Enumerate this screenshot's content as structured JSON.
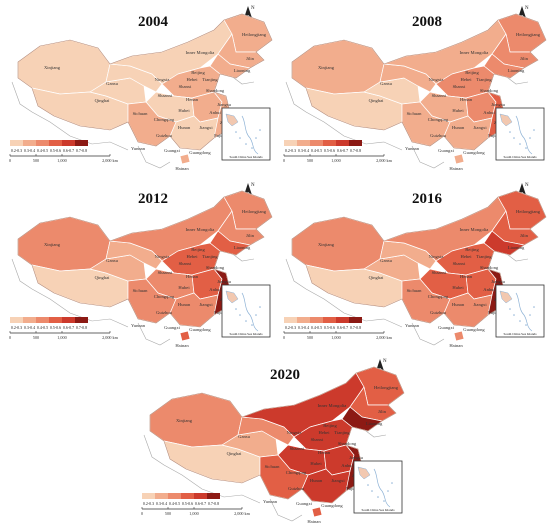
{
  "panels": [
    {
      "year": "2004",
      "levels": {
        "xinjiang": 0,
        "tibet": 0,
        "qinghai": 0,
        "gansu": 0,
        "imongolia": 0,
        "heilongjiang": 1,
        "jilin": 1,
        "liaoning": 1,
        "north": 1,
        "central": 0,
        "east": 1,
        "coast": 1,
        "south": 0,
        "southwest": 1,
        "hainan": 1
      }
    },
    {
      "year": "2008",
      "levels": {
        "xinjiang": 1,
        "tibet": 0,
        "qinghai": 0,
        "gansu": 1,
        "imongolia": 1,
        "heilongjiang": 2,
        "jilin": 2,
        "liaoning": 2,
        "north": 2,
        "central": 1,
        "east": 2,
        "coast": 3,
        "south": 1,
        "southwest": 1,
        "hainan": 1
      }
    },
    {
      "year": "2012",
      "levels": {
        "xinjiang": 2,
        "tibet": 0,
        "qinghai": 1,
        "gansu": 1,
        "imongolia": 2,
        "heilongjiang": 2,
        "jilin": 2,
        "liaoning": 3,
        "north": 3,
        "central": 2,
        "east": 3,
        "coast": 5,
        "south": 2,
        "southwest": 2,
        "hainan": 3
      }
    },
    {
      "year": "2016",
      "levels": {
        "xinjiang": 2,
        "tibet": 0,
        "qinghai": 1,
        "gansu": 1,
        "imongolia": 2,
        "heilongjiang": 3,
        "jilin": 3,
        "liaoning": 4,
        "north": 3,
        "central": 3,
        "east": 3,
        "coast": 5,
        "south": 2,
        "southwest": 2,
        "hainan": 2
      }
    },
    {
      "year": "2020",
      "levels": {
        "xinjiang": 2,
        "tibet": 0,
        "qinghai": 1,
        "gansu": 2,
        "imongolia": 4,
        "heilongjiang": 3,
        "jilin": 3,
        "liaoning": 5,
        "north": 4,
        "central": 4,
        "east": 4,
        "coast": 6,
        "south": 4,
        "southwest": 3,
        "hainan": 3
      }
    }
  ],
  "province_labels": [
    "Xinjiang",
    "Gansu",
    "Qinghai",
    "Inner Mongolia",
    "Heilongjiang",
    "Jilin",
    "Liaoning",
    "Beijing",
    "Hebei",
    "Tianjing",
    "Shanxi",
    "Ningxia",
    "Shaanxi",
    "Henan",
    "Shandong",
    "Jiangsu",
    "Shanghai",
    "Anhui",
    "Hubei",
    "Sichuan",
    "Chongqing",
    "Hunan",
    "Jiangxi",
    "Zhejiang",
    "Fujian",
    "Guizhou",
    "Yunnan",
    "Guangxi",
    "Guangdong",
    "Hainan"
  ],
  "legend": {
    "labels": [
      "0.2-0.3",
      "0.3-0.4",
      "0.4-0.5",
      "0.5-0.6",
      "0.6-0.7",
      "0.7-0.8"
    ],
    "colors": [
      "#f7d2b6",
      "#f2ad8d",
      "#ec8a6c",
      "#e25f45",
      "#cc3a2c",
      "#8c1a14"
    ]
  },
  "scale_bar": {
    "ticks": [
      "0",
      "500",
      "1,000",
      "2,000"
    ],
    "unit": "km"
  },
  "inset_label": "South China Sea Islands",
  "north_label": "N",
  "colors": {
    "land_base": "#f3bda0",
    "boundary": "#ffffff",
    "outline": "#b58a78",
    "neighbor": "#aaaaaa"
  }
}
